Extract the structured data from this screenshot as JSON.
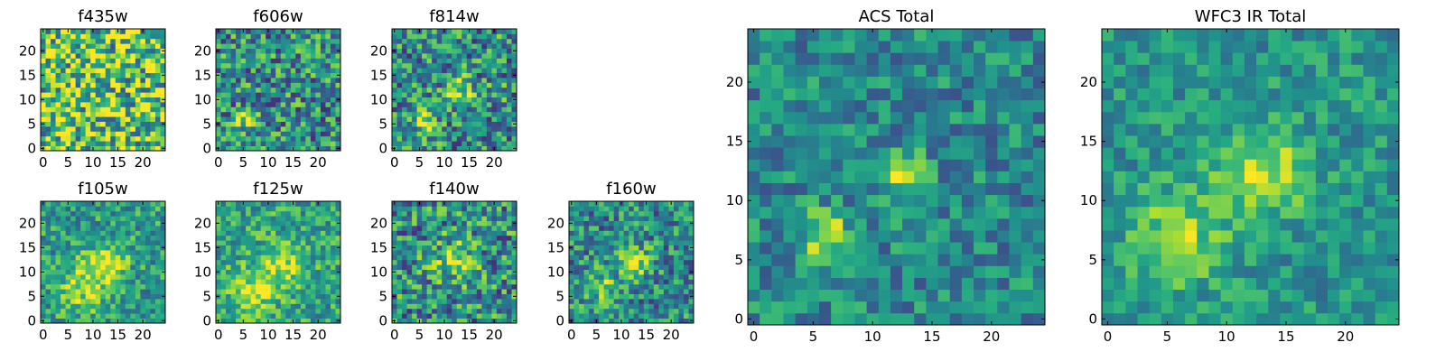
{
  "chart_data": [
    {
      "type": "heatmap",
      "title": "f435w",
      "x_ticks": [
        "0",
        "5",
        "10",
        "15",
        "20"
      ],
      "y_ticks": [
        "0",
        "5",
        "10",
        "15",
        "20"
      ],
      "grid_size": [
        25,
        25
      ],
      "xlim": [
        -0.5,
        24.5
      ],
      "ylim": [
        -0.5,
        24.5
      ],
      "colormap": "viridis",
      "blobs": [],
      "noise": 0.45,
      "base": 0.72
    },
    {
      "type": "heatmap",
      "title": "f606w",
      "x_ticks": [
        "0",
        "5",
        "10",
        "15",
        "20"
      ],
      "y_ticks": [
        "0",
        "5",
        "10",
        "15",
        "20"
      ],
      "grid_size": [
        25,
        25
      ],
      "xlim": [
        -0.5,
        24.5
      ],
      "ylim": [
        -0.5,
        24.5
      ],
      "colormap": "viridis",
      "blobs": [
        {
          "x": 6,
          "y": 6,
          "amp": 0.5,
          "sigma": 1.5
        }
      ],
      "noise": 0.35,
      "base": 0.5
    },
    {
      "type": "heatmap",
      "title": "f814w",
      "x_ticks": [
        "0",
        "5",
        "10",
        "15",
        "20"
      ],
      "y_ticks": [
        "0",
        "5",
        "10",
        "15",
        "20"
      ],
      "grid_size": [
        25,
        25
      ],
      "xlim": [
        -0.5,
        24.5
      ],
      "ylim": [
        -0.5,
        24.5
      ],
      "colormap": "viridis",
      "blobs": [
        {
          "x": 6,
          "y": 6,
          "amp": 0.5,
          "sigma": 1.5
        },
        {
          "x": 13,
          "y": 12,
          "amp": 0.4,
          "sigma": 1.8
        }
      ],
      "noise": 0.35,
      "base": 0.5
    },
    {
      "type": "heatmap",
      "title": "f105w",
      "x_ticks": [
        "0",
        "5",
        "10",
        "15",
        "20"
      ],
      "y_ticks": [
        "0",
        "5",
        "10",
        "15",
        "20"
      ],
      "grid_size": [
        25,
        25
      ],
      "xlim": [
        -0.5,
        24.5
      ],
      "ylim": [
        -0.5,
        24.5
      ],
      "colormap": "viridis",
      "blobs": [
        {
          "x": 8,
          "y": 7,
          "amp": 0.35,
          "sigma": 3.5
        },
        {
          "x": 13,
          "y": 12,
          "amp": 0.3,
          "sigma": 3
        }
      ],
      "noise": 0.25,
      "base": 0.55
    },
    {
      "type": "heatmap",
      "title": "f125w",
      "x_ticks": [
        "0",
        "5",
        "10",
        "15",
        "20"
      ],
      "y_ticks": [
        "0",
        "5",
        "10",
        "15",
        "20"
      ],
      "grid_size": [
        25,
        25
      ],
      "xlim": [
        -0.5,
        24.5
      ],
      "ylim": [
        -0.5,
        24.5
      ],
      "colormap": "viridis",
      "blobs": [
        {
          "x": 7,
          "y": 6,
          "amp": 0.35,
          "sigma": 3.5
        },
        {
          "x": 13,
          "y": 12,
          "amp": 0.3,
          "sigma": 3
        }
      ],
      "noise": 0.25,
      "base": 0.58
    },
    {
      "type": "heatmap",
      "title": "f140w",
      "x_ticks": [
        "0",
        "5",
        "10",
        "15",
        "20"
      ],
      "y_ticks": [
        "0",
        "5",
        "10",
        "15",
        "20"
      ],
      "grid_size": [
        25,
        25
      ],
      "xlim": [
        -0.5,
        24.5
      ],
      "ylim": [
        -0.5,
        24.5
      ],
      "colormap": "viridis",
      "blobs": [
        {
          "x": 12,
          "y": 12,
          "amp": 0.3,
          "sigma": 3
        }
      ],
      "noise": 0.35,
      "base": 0.5
    },
    {
      "type": "heatmap",
      "title": "f160w",
      "x_ticks": [
        "0",
        "5",
        "10",
        "15",
        "20"
      ],
      "y_ticks": [
        "0",
        "5",
        "10",
        "15",
        "20"
      ],
      "grid_size": [
        25,
        25
      ],
      "xlim": [
        -0.5,
        24.5
      ],
      "ylim": [
        -0.5,
        24.5
      ],
      "colormap": "viridis",
      "blobs": [
        {
          "x": 13,
          "y": 12,
          "amp": 0.4,
          "sigma": 2.2
        },
        {
          "x": 6,
          "y": 7,
          "amp": 0.3,
          "sigma": 2.5
        }
      ],
      "noise": 0.3,
      "base": 0.48
    },
    {
      "type": "heatmap",
      "title": "ACS Total",
      "x_ticks": [
        "0",
        "5",
        "10",
        "15",
        "20"
      ],
      "y_ticks": [
        "0",
        "5",
        "10",
        "15",
        "20"
      ],
      "grid_size": [
        25,
        25
      ],
      "xlim": [
        -0.5,
        24.5
      ],
      "ylim": [
        -0.5,
        24.5
      ],
      "colormap": "viridis",
      "blobs": [
        {
          "x": 6,
          "y": 7,
          "amp": 0.5,
          "sigma": 1.4
        },
        {
          "x": 12.5,
          "y": 12,
          "amp": 0.38,
          "sigma": 1.5
        }
      ],
      "noise": 0.22,
      "base": 0.47
    },
    {
      "type": "heatmap",
      "title": "WFC3 IR Total",
      "x_ticks": [
        "0",
        "5",
        "10",
        "15",
        "20"
      ],
      "y_ticks": [
        "0",
        "5",
        "10",
        "15",
        "20"
      ],
      "grid_size": [
        25,
        25
      ],
      "xlim": [
        -0.5,
        24.5
      ],
      "ylim": [
        -0.5,
        24.5
      ],
      "colormap": "viridis",
      "blobs": [
        {
          "x": 13,
          "y": 12.5,
          "amp": 0.4,
          "sigma": 2.6
        },
        {
          "x": 6,
          "y": 7,
          "amp": 0.32,
          "sigma": 2.8
        }
      ],
      "noise": 0.18,
      "base": 0.52
    }
  ]
}
